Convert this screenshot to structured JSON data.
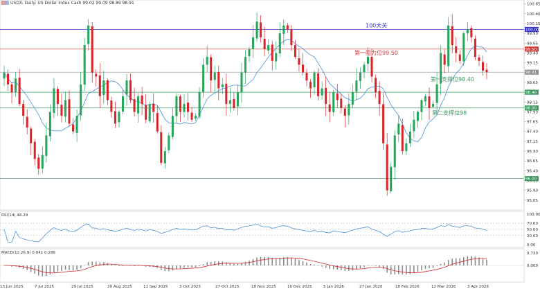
{
  "header": {
    "title": "USDX, Daily:  US Dollar Index Cash  99.02 99.09 98.89 98.91"
  },
  "levels": [
    {
      "name": "100-level",
      "price": 100.0,
      "color": "#3333cc",
      "tag": "100.00",
      "label": "100大关"
    },
    {
      "name": "resistance-1",
      "price": 99.5,
      "color": "#d93a3a",
      "tag": "99.50",
      "label": "第一阻力位99.50"
    },
    {
      "name": "current-price",
      "price": 98.91,
      "color": "#8f8f8f",
      "tag": "98.91",
      "label": ""
    },
    {
      "name": "support-1",
      "price": 98.4,
      "color": "#3c9a5f",
      "tag": "98.40",
      "label": "第一支撑位98.40"
    },
    {
      "name": "support-2",
      "price": 98.0,
      "color": "#3c9a5f",
      "tag": "98.00",
      "label": "第二支撑位98"
    },
    {
      "name": "support-low",
      "price": 96.2,
      "color": "#3c9a5f",
      "tag": "96.20",
      "label": ""
    }
  ],
  "indicators": {
    "rsi_label": "RSI(14) 46.29",
    "macd_label": "MACD(12,26,9) 0.041 0.286"
  },
  "colors": {
    "bull": "#26a65b",
    "bear": "#d9252a",
    "ma": "#4a8fd6",
    "rsi": "#4a8fd6",
    "macd_signal": "#d9252a",
    "macd_hist": "#8c8c8c"
  },
  "chart_data": {
    "type": "candlestick",
    "symbol": "USDX",
    "timeframe": "Daily",
    "price_axis": {
      "min": 95.4,
      "max": 100.75,
      "ticks": [
        "100.65",
        "100.40",
        "100.15",
        "99.90",
        "99.65",
        "99.40",
        "99.15",
        "98.90",
        "98.65",
        "98.40",
        "98.15",
        "97.90",
        "97.65",
        "97.40",
        "97.15",
        "96.90",
        "96.65",
        "96.40",
        "96.15",
        "95.90",
        "95.65"
      ]
    },
    "x_labels": [
      "13 Jun 2025",
      "7 Jul 2025",
      "29 Jul 2025",
      "20 Aug 2025",
      "11 Sep 2025",
      "3 Oct 2025",
      "27 Oct 2025",
      "18 Nov 2025",
      "10 Dec 2025",
      "5 Jan 2026",
      "27 Jan 2026",
      "18 Feb 2026",
      "12 Mar 2026",
      "3 Apr 2026"
    ],
    "closes": [
      98.9,
      98.6,
      98.4,
      98.75,
      98.1,
      97.8,
      97.5,
      97.1,
      96.7,
      96.45,
      96.8,
      97.3,
      97.9,
      98.5,
      98.1,
      97.8,
      98.2,
      97.6,
      97.4,
      97.8,
      98.6,
      99.6,
      100.1,
      98.9,
      98.8,
      98.3,
      98.7,
      98.2,
      97.9,
      97.6,
      97.9,
      98.3,
      98.7,
      98.2,
      97.9,
      98.3,
      98.1,
      97.7,
      98.1,
      97.9,
      97.4,
      96.6,
      96.9,
      97.3,
      97.8,
      98.3,
      97.9,
      98.1,
      97.9,
      97.7,
      97.8,
      98.4,
      99.1,
      99.3,
      98.7,
      98.9,
      98.5,
      98.6,
      98.1,
      98.2,
      98.0,
      98.4,
      98.9,
      99.3,
      99.5,
      99.8,
      100.2,
      99.8,
      99.5,
      99.6,
      99.2,
      99.4,
      99.9,
      100.1,
      100.0,
      99.6,
      99.3,
      99.1,
      98.9,
      98.7,
      98.5,
      98.9,
      98.3,
      98.5,
      98.1,
      97.9,
      98.4,
      98.2,
      98.0,
      97.8,
      98.1,
      98.4,
      98.7,
      98.9,
      99.1,
      99.3,
      98.8,
      98.4,
      98.1,
      97.1,
      95.9,
      96.5,
      97.3,
      97.6,
      96.9,
      97.1,
      97.4,
      97.7,
      97.9,
      98.2,
      98.3,
      98.0,
      98.1,
      98.6,
      99.4,
      99.1,
      100.1,
      99.6,
      99.4,
      99.2,
      99.9,
      100.0,
      99.8,
      99.3,
      99.2,
      98.95,
      98.91
    ],
    "ma_period": 10,
    "rsi": {
      "period": 14,
      "value": 46.29,
      "axis": [
        "100.00",
        "70.00",
        "50.00",
        "30.00",
        "0.00"
      ]
    },
    "macd": {
      "params": "12,26,9",
      "macd": 0.041,
      "signal": 0.286,
      "axis": [
        "0.730",
        "0.000"
      ]
    }
  }
}
